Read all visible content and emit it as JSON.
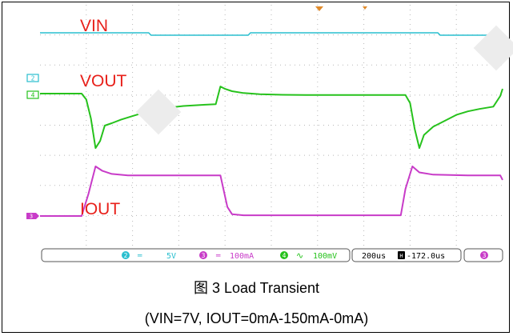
{
  "chart_data": {
    "type": "line",
    "title": "图 3 Load Transient",
    "subtitle": "(VIN=7V, IOUT=0mA-150mA-0mA)",
    "grid": true,
    "xlim": [
      0,
      2000
    ],
    "series": [
      {
        "name": "VIN",
        "channel": 1,
        "color": "#29bfcf",
        "x": [
          0,
          470,
          480,
          900,
          910,
          1720,
          1730,
          2000
        ],
        "y": [
          0.0,
          0.0,
          -0.3,
          -0.3,
          0.0,
          0.0,
          -0.3,
          -0.3
        ]
      },
      {
        "name": "VOUT",
        "channel": 4,
        "color": "#26c21c",
        "x": [
          0,
          180,
          200,
          220,
          240,
          260,
          280,
          310,
          350,
          400,
          450,
          500,
          550,
          620,
          700,
          760,
          780,
          800,
          830,
          880,
          950,
          1050,
          1150,
          1250,
          1350,
          1480,
          1580,
          1600,
          1620,
          1640,
          1660,
          1700,
          1750,
          1800,
          1850,
          1900,
          1960,
          1990,
          2000
        ],
        "y": [
          0.0,
          0.0,
          -0.5,
          -2.1,
          -4.6,
          -4.0,
          -2.7,
          -2.5,
          -2.2,
          -1.9,
          -1.6,
          -1.4,
          -1.2,
          -1.05,
          -0.95,
          -0.9,
          0.6,
          0.4,
          0.2,
          0.05,
          -0.05,
          -0.1,
          -0.12,
          -0.12,
          -0.12,
          -0.12,
          -0.12,
          -0.8,
          -3.0,
          -4.6,
          -3.5,
          -2.8,
          -2.3,
          -1.8,
          -1.5,
          -1.3,
          -1.1,
          -0.2,
          0.4
        ]
      },
      {
        "name": "IOUT",
        "channel": 3,
        "color": "#c83bc8",
        "x": [
          0,
          180,
          210,
          240,
          270,
          310,
          380,
          500,
          680,
          780,
          790,
          810,
          830,
          880,
          1100,
          1450,
          1560,
          1580,
          1610,
          1640,
          1700,
          1850,
          1990,
          2000
        ],
        "y": [
          0,
          0,
          1.5,
          3.3,
          3.0,
          2.8,
          2.7,
          2.7,
          2.7,
          2.7,
          2.0,
          0.6,
          0.12,
          0.05,
          0.05,
          0.05,
          0.05,
          1.8,
          3.3,
          2.9,
          2.75,
          2.7,
          2.7,
          2.4
        ]
      }
    ]
  },
  "scope": {
    "status_bar": {
      "ch2": "2",
      "ch2_scale": "5V",
      "ch3": "3",
      "ch3_scale": "100mA",
      "ch4": "4",
      "ch4_scale": "100mV",
      "timebase": "200us",
      "h_delay": "-172.0us",
      "ch3_extra": "3"
    }
  },
  "colors": {
    "vin": "#29bfcf",
    "vout": "#26c21c",
    "iout": "#c83bc8",
    "label": "#e8201a",
    "grid": "#b8b8b8",
    "trigger": "#e08a2a"
  }
}
